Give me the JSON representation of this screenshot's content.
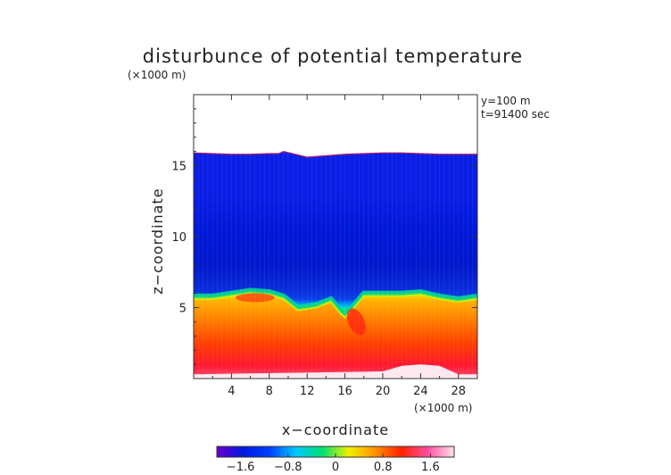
{
  "chart_data": {
    "type": "heatmap",
    "title": "disturbunce of potential temperature",
    "ylabel": "z−coordinate",
    "xlabel": "x−coordinate",
    "y_unit": "(×1000 m)",
    "x_unit": "(×1000 m)",
    "annotations": [
      "y=100 m",
      "t=91400 sec"
    ],
    "xlim": [
      0,
      30
    ],
    "ylim": [
      0,
      20
    ],
    "x_ticks": [
      4,
      8,
      12,
      16,
      20,
      24,
      28
    ],
    "x_tick_labels": [
      "4",
      "8",
      "12",
      "16",
      "20",
      "24",
      "28"
    ],
    "y_ticks": [
      5,
      10,
      15
    ],
    "y_tick_labels": [
      "5",
      "10",
      "15"
    ],
    "colorbar": {
      "range": [
        -2.0,
        2.0
      ],
      "ticks": [
        -1.6,
        -0.8,
        0,
        0.8,
        1.6
      ],
      "tick_labels": [
        "−1.6",
        "−0.8",
        "0",
        "0.8",
        "1.6"
      ],
      "colors": [
        "#6a00c8",
        "#0018e0",
        "#0040ff",
        "#00c8ff",
        "#00e070",
        "#f0f000",
        "#ff9000",
        "#ff2000",
        "#ff50a0",
        "#ffe0ec"
      ]
    },
    "field_top_z": [
      15.9,
      15.85,
      15.8,
      15.8,
      15.85,
      15.85,
      16.0,
      15.6,
      15.7,
      15.8,
      15.85,
      15.9,
      15.9,
      15.85,
      15.8,
      15.8
    ],
    "field_top_x": [
      0,
      2,
      4,
      6,
      8,
      9,
      9.5,
      12,
      14,
      16,
      18,
      20,
      22,
      24,
      26,
      30
    ],
    "transition_x": [
      0,
      2,
      4,
      6,
      8,
      9.5,
      11,
      13,
      14.5,
      15.5,
      16,
      17,
      18,
      20,
      22,
      24,
      26,
      28,
      30
    ],
    "transition_z": [
      5.8,
      5.8,
      6.0,
      6.2,
      6.1,
      5.8,
      5.0,
      5.2,
      5.6,
      4.8,
      4.5,
      5.2,
      6.0,
      6.0,
      6.0,
      6.1,
      5.8,
      5.6,
      5.8
    ],
    "surface_x": [
      0,
      20,
      22,
      24,
      26,
      27,
      28,
      30
    ],
    "surface_z": [
      0.3,
      0.5,
      0.9,
      1.0,
      0.9,
      0.6,
      0.3,
      0.3
    ]
  }
}
